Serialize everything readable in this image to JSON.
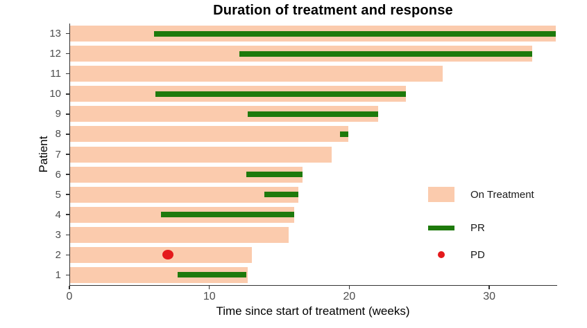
{
  "chart_data": {
    "type": "bar",
    "subtype": "swimmer-plot",
    "title": "Duration of treatment and response",
    "xlabel": "Time since start of treatment (weeks)",
    "ylabel": "Patient",
    "xlim": [
      0,
      34.8
    ],
    "x_ticks": [
      0,
      10,
      20,
      30
    ],
    "grid": false,
    "legend_position": "inside-right-bottom",
    "colors": {
      "on_treatment": "#fbcbad",
      "pr": "#1e7a0c",
      "pd": "#e41a1c",
      "axis_text": "#4d4d4d",
      "axis_line": "#333333"
    },
    "series_legend": [
      {
        "label": "On Treatment",
        "marker": "bar",
        "color": "#fbcbad"
      },
      {
        "label": "PR",
        "marker": "line",
        "color": "#1e7a0c"
      },
      {
        "label": "PD",
        "marker": "dot",
        "color": "#e41a1c"
      }
    ],
    "patients": [
      {
        "id": 13,
        "on_treatment_weeks": [
          0,
          34.7
        ],
        "pr_weeks": [
          6.0,
          34.7
        ],
        "pd_week": null
      },
      {
        "id": 12,
        "on_treatment_weeks": [
          0,
          33.0
        ],
        "pr_weeks": [
          12.1,
          33.0
        ],
        "pd_week": null
      },
      {
        "id": 11,
        "on_treatment_weeks": [
          0,
          26.6
        ],
        "pr_weeks": null,
        "pd_week": null
      },
      {
        "id": 10,
        "on_treatment_weeks": [
          0,
          24.0
        ],
        "pr_weeks": [
          6.1,
          24.0
        ],
        "pd_week": null
      },
      {
        "id": 9,
        "on_treatment_weeks": [
          0,
          22.0
        ],
        "pr_weeks": [
          12.7,
          22.0
        ],
        "pd_week": null
      },
      {
        "id": 8,
        "on_treatment_weeks": [
          0,
          19.9
        ],
        "pr_weeks": [
          19.3,
          19.9
        ],
        "pd_week": null
      },
      {
        "id": 7,
        "on_treatment_weeks": [
          0,
          18.7
        ],
        "pr_weeks": null,
        "pd_week": null
      },
      {
        "id": 6,
        "on_treatment_weeks": [
          0,
          16.6
        ],
        "pr_weeks": [
          12.6,
          16.6
        ],
        "pd_week": null
      },
      {
        "id": 5,
        "on_treatment_weeks": [
          0,
          16.3
        ],
        "pr_weeks": [
          13.9,
          16.3
        ],
        "pd_week": null
      },
      {
        "id": 4,
        "on_treatment_weeks": [
          0,
          16.0
        ],
        "pr_weeks": [
          6.5,
          16.0
        ],
        "pd_week": null
      },
      {
        "id": 3,
        "on_treatment_weeks": [
          0,
          15.6
        ],
        "pr_weeks": null,
        "pd_week": null
      },
      {
        "id": 2,
        "on_treatment_weeks": [
          0,
          13.0
        ],
        "pr_weeks": null,
        "pd_week": 7.0
      },
      {
        "id": 1,
        "on_treatment_weeks": [
          0,
          12.7
        ],
        "pr_weeks": [
          7.7,
          12.6
        ],
        "pd_week": null
      }
    ]
  }
}
